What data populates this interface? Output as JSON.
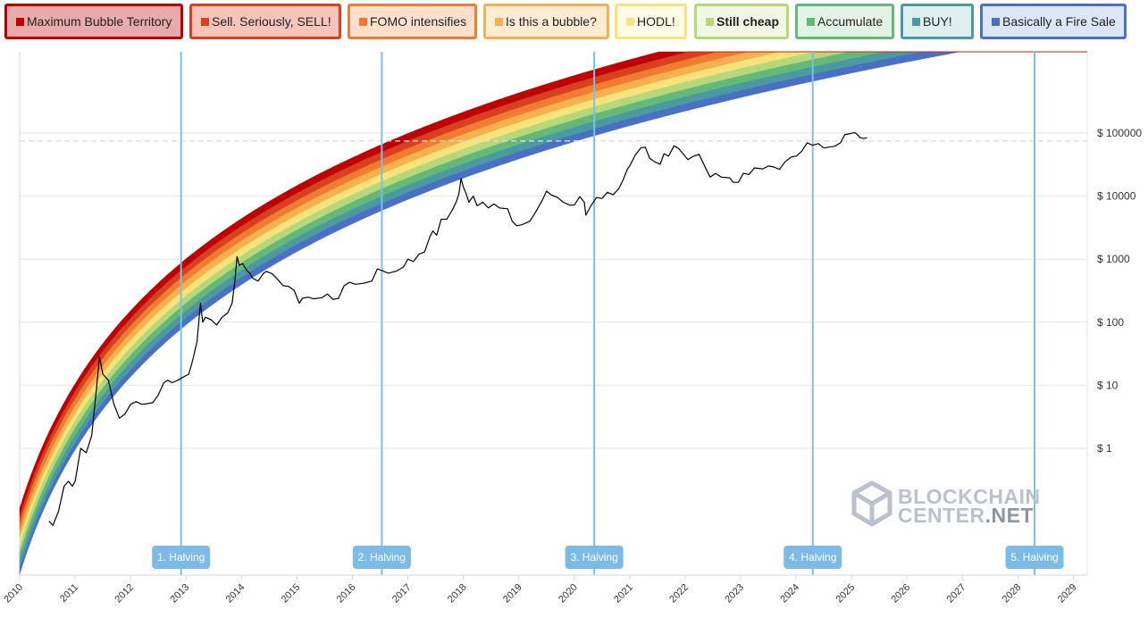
{
  "legend": [
    {
      "label": "Maximum Bubble Territory",
      "color": "#c00000",
      "fill": "#e8aaaa",
      "bold": false
    },
    {
      "label": "Sell. Seriously, SELL!",
      "color": "#d94020",
      "fill": "#f6c4b8",
      "bold": false
    },
    {
      "label": "FOMO intensifies",
      "color": "#f07c30",
      "fill": "#fde0cc",
      "bold": false
    },
    {
      "label": "Is this a bubble?",
      "color": "#f5b050",
      "fill": "#fdebd2",
      "bold": false
    },
    {
      "label": "HODL!",
      "color": "#f8e37a",
      "fill": "#fefbe6",
      "bold": false
    },
    {
      "label": "Still cheap",
      "color": "#b6d77a",
      "fill": "#f0f7e4",
      "bold": true
    },
    {
      "label": "Accumulate",
      "color": "#64b878",
      "fill": "#e2f2e4",
      "bold": false
    },
    {
      "label": "BUY!",
      "color": "#4a9aa0",
      "fill": "#dfeeee",
      "bold": false
    },
    {
      "label": "Basically a Fire Sale",
      "color": "#4a70c6",
      "fill": "#dde6f6",
      "bold": false
    }
  ],
  "logo": {
    "line1": "BLOCKCHAIN",
    "line2a": "CENTER",
    "line2b": ".NET"
  },
  "chart_data": {
    "type": "area",
    "y_scale": "log",
    "y_ticks": [
      {
        "value": 1,
        "label": "$ 1"
      },
      {
        "value": 10,
        "label": "$ 10"
      },
      {
        "value": 100,
        "label": "$ 100"
      },
      {
        "value": 1000,
        "label": "$ 1000"
      },
      {
        "value": 10000,
        "label": "$ 10000"
      },
      {
        "value": 100000,
        "label": "$ 100000"
      }
    ],
    "x_ticks": [
      "2010",
      "2011",
      "2012",
      "2013",
      "2014",
      "2015",
      "2016",
      "2017",
      "2018",
      "2019",
      "2020",
      "2021",
      "2022",
      "2023",
      "2024",
      "2025",
      "2026",
      "2027",
      "2028",
      "2029"
    ],
    "band_colors": [
      "#4a70c6",
      "#4a9aa0",
      "#64b878",
      "#b6d77a",
      "#f8e37a",
      "#f5b050",
      "#f07c30",
      "#d94020",
      "#c00000"
    ],
    "halvings": [
      {
        "label": "1. Halving",
        "year": 2012.91
      },
      {
        "label": "2. Halving",
        "year": 2016.53
      },
      {
        "label": "3. Halving",
        "year": 2020.36
      },
      {
        "label": "4. Halving",
        "year": 2024.3
      },
      {
        "label": "5. Halving",
        "year": 2028.3
      }
    ],
    "reference_price": 75000,
    "price": {
      "series_name": "BTC price",
      "points": [
        [
          2010.53,
          0.07
        ],
        [
          2010.6,
          0.06
        ],
        [
          2010.7,
          0.1
        ],
        [
          2010.8,
          0.25
        ],
        [
          2010.88,
          0.3
        ],
        [
          2010.95,
          0.25
        ],
        [
          2011.0,
          0.3
        ],
        [
          2011.1,
          1.0
        ],
        [
          2011.2,
          0.85
        ],
        [
          2011.3,
          1.6
        ],
        [
          2011.38,
          8
        ],
        [
          2011.44,
          28
        ],
        [
          2011.5,
          15
        ],
        [
          2011.6,
          12
        ],
        [
          2011.7,
          5
        ],
        [
          2011.8,
          3
        ],
        [
          2011.9,
          3.5
        ],
        [
          2012.0,
          5
        ],
        [
          2012.1,
          5.5
        ],
        [
          2012.2,
          5
        ],
        [
          2012.3,
          5.1
        ],
        [
          2012.4,
          5.3
        ],
        [
          2012.5,
          7
        ],
        [
          2012.6,
          11
        ],
        [
          2012.67,
          12
        ],
        [
          2012.75,
          11
        ],
        [
          2012.85,
          12
        ],
        [
          2012.95,
          13.5
        ],
        [
          2013.05,
          15
        ],
        [
          2013.12,
          25
        ],
        [
          2013.2,
          50
        ],
        [
          2013.26,
          200
        ],
        [
          2013.3,
          100
        ],
        [
          2013.35,
          120
        ],
        [
          2013.45,
          110
        ],
        [
          2013.55,
          90
        ],
        [
          2013.65,
          120
        ],
        [
          2013.75,
          140
        ],
        [
          2013.83,
          200
        ],
        [
          2013.88,
          450
        ],
        [
          2013.92,
          1100
        ],
        [
          2013.96,
          800
        ],
        [
          2014.02,
          850
        ],
        [
          2014.1,
          650
        ],
        [
          2014.15,
          600
        ],
        [
          2014.2,
          500
        ],
        [
          2014.3,
          450
        ],
        [
          2014.4,
          600
        ],
        [
          2014.45,
          640
        ],
        [
          2014.55,
          590
        ],
        [
          2014.65,
          480
        ],
        [
          2014.75,
          380
        ],
        [
          2014.85,
          370
        ],
        [
          2014.95,
          320
        ],
        [
          2015.04,
          200
        ],
        [
          2015.1,
          240
        ],
        [
          2015.2,
          250
        ],
        [
          2015.3,
          235
        ],
        [
          2015.45,
          245
        ],
        [
          2015.55,
          280
        ],
        [
          2015.65,
          230
        ],
        [
          2015.75,
          240
        ],
        [
          2015.85,
          380
        ],
        [
          2015.95,
          430
        ],
        [
          2016.05,
          400
        ],
        [
          2016.2,
          415
        ],
        [
          2016.35,
          450
        ],
        [
          2016.45,
          700
        ],
        [
          2016.55,
          650
        ],
        [
          2016.65,
          600
        ],
        [
          2016.8,
          650
        ],
        [
          2016.92,
          750
        ],
        [
          2017.0,
          1000
        ],
        [
          2017.1,
          920
        ],
        [
          2017.2,
          1200
        ],
        [
          2017.3,
          1300
        ],
        [
          2017.4,
          2300
        ],
        [
          2017.45,
          2800
        ],
        [
          2017.52,
          2400
        ],
        [
          2017.6,
          4300
        ],
        [
          2017.7,
          4300
        ],
        [
          2017.8,
          6000
        ],
        [
          2017.87,
          8000
        ],
        [
          2017.92,
          11000
        ],
        [
          2017.96,
          19000
        ],
        [
          2018.0,
          14000
        ],
        [
          2018.05,
          11000
        ],
        [
          2018.1,
          8000
        ],
        [
          2018.18,
          10000
        ],
        [
          2018.25,
          7000
        ],
        [
          2018.35,
          8000
        ],
        [
          2018.45,
          6500
        ],
        [
          2018.55,
          7500
        ],
        [
          2018.65,
          6500
        ],
        [
          2018.8,
          6300
        ],
        [
          2018.88,
          4000
        ],
        [
          2018.96,
          3400
        ],
        [
          2019.05,
          3500
        ],
        [
          2019.2,
          4000
        ],
        [
          2019.3,
          5500
        ],
        [
          2019.42,
          8500
        ],
        [
          2019.5,
          12000
        ],
        [
          2019.58,
          10500
        ],
        [
          2019.7,
          9500
        ],
        [
          2019.8,
          8000
        ],
        [
          2019.92,
          7200
        ],
        [
          2020.0,
          7200
        ],
        [
          2020.1,
          9800
        ],
        [
          2020.18,
          8000
        ],
        [
          2020.21,
          5000
        ],
        [
          2020.3,
          7000
        ],
        [
          2020.4,
          9500
        ],
        [
          2020.5,
          9200
        ],
        [
          2020.6,
          11500
        ],
        [
          2020.7,
          10500
        ],
        [
          2020.8,
          13000
        ],
        [
          2020.88,
          18000
        ],
        [
          2020.96,
          27000
        ],
        [
          2021.0,
          30000
        ],
        [
          2021.1,
          45000
        ],
        [
          2021.2,
          58000
        ],
        [
          2021.28,
          60000
        ],
        [
          2021.36,
          40000
        ],
        [
          2021.45,
          35000
        ],
        [
          2021.55,
          32000
        ],
        [
          2021.62,
          47000
        ],
        [
          2021.7,
          43000
        ],
        [
          2021.8,
          63000
        ],
        [
          2021.88,
          57000
        ],
        [
          2021.96,
          47000
        ],
        [
          2022.05,
          38000
        ],
        [
          2022.15,
          43000
        ],
        [
          2022.25,
          46000
        ],
        [
          2022.35,
          30000
        ],
        [
          2022.45,
          20000
        ],
        [
          2022.55,
          23000
        ],
        [
          2022.65,
          20000
        ],
        [
          2022.8,
          19500
        ],
        [
          2022.87,
          16500
        ],
        [
          2022.96,
          16600
        ],
        [
          2023.05,
          23000
        ],
        [
          2023.15,
          22000
        ],
        [
          2023.25,
          28000
        ],
        [
          2023.4,
          27000
        ],
        [
          2023.5,
          30000
        ],
        [
          2023.6,
          29000
        ],
        [
          2023.7,
          26500
        ],
        [
          2023.8,
          35000
        ],
        [
          2023.92,
          42000
        ],
        [
          2024.0,
          43000
        ],
        [
          2024.1,
          51000
        ],
        [
          2024.2,
          70000
        ],
        [
          2024.3,
          64000
        ],
        [
          2024.4,
          68000
        ],
        [
          2024.5,
          58000
        ],
        [
          2024.6,
          60000
        ],
        [
          2024.7,
          62000
        ],
        [
          2024.8,
          70000
        ],
        [
          2024.88,
          95000
        ],
        [
          2024.96,
          97000
        ],
        [
          2025.05,
          102000
        ],
        [
          2025.1,
          96000
        ],
        [
          2025.16,
          84000
        ],
        [
          2025.22,
          82000
        ],
        [
          2025.28,
          84000
        ]
      ]
    }
  }
}
